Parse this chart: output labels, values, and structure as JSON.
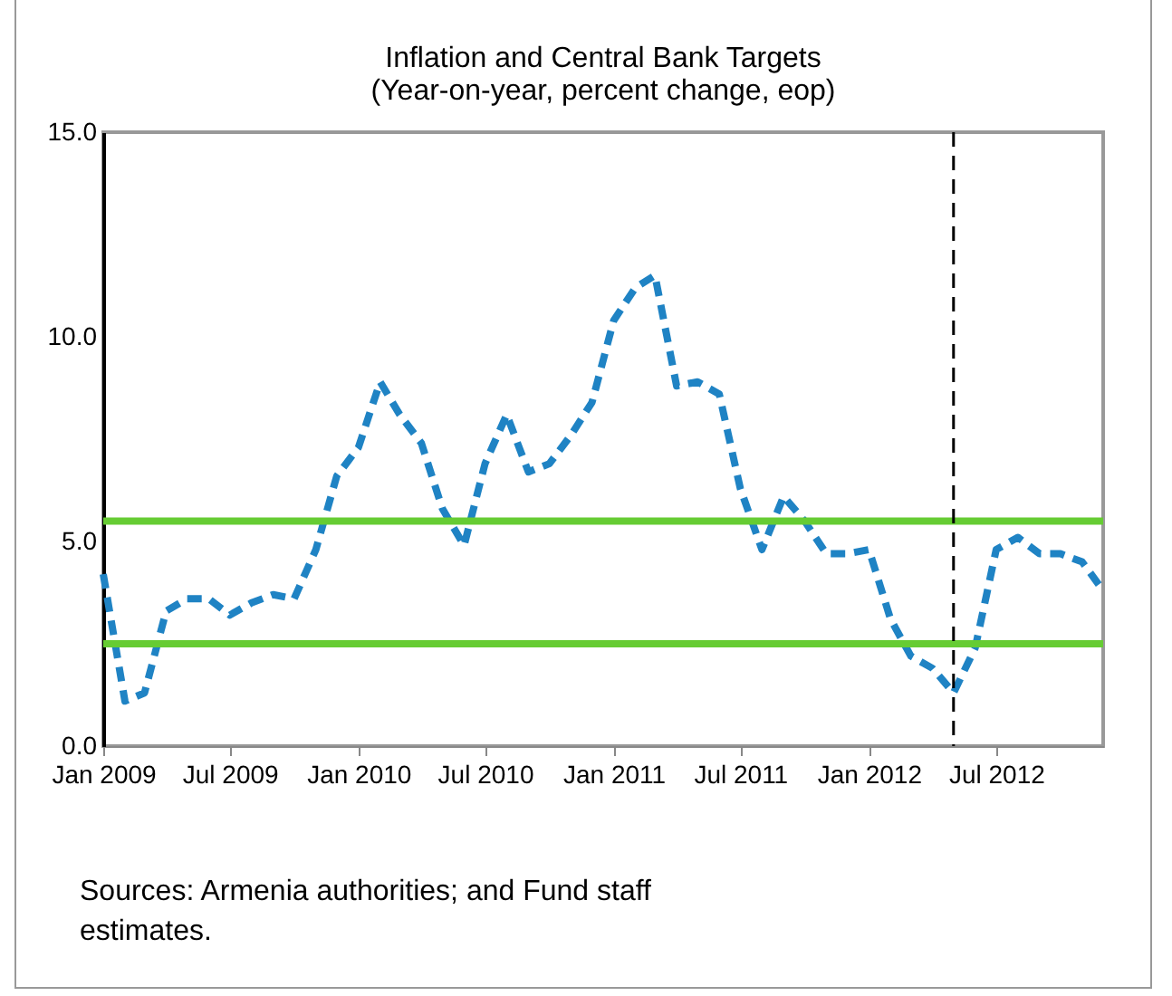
{
  "chart_data": {
    "type": "line",
    "title": "Inflation and Central Bank Targets",
    "subtitle": "(Year-on-year, percent change, eop)",
    "x": [
      "2009-01",
      "2009-02",
      "2009-03",
      "2009-04",
      "2009-05",
      "2009-06",
      "2009-07",
      "2009-08",
      "2009-09",
      "2009-10",
      "2009-11",
      "2009-12",
      "2010-01",
      "2010-02",
      "2010-03",
      "2010-04",
      "2010-05",
      "2010-06",
      "2010-07",
      "2010-08",
      "2010-09",
      "2010-10",
      "2010-11",
      "2010-12",
      "2011-01",
      "2011-02",
      "2011-03",
      "2011-04",
      "2011-05",
      "2011-06",
      "2011-07",
      "2011-08",
      "2011-09",
      "2011-10",
      "2011-11",
      "2011-12",
      "2012-01",
      "2012-02",
      "2012-03",
      "2012-04",
      "2012-05",
      "2012-06",
      "2012-07",
      "2012-08",
      "2012-09",
      "2012-10",
      "2012-11",
      "2012-12"
    ],
    "series": [
      {
        "color": "#1f83c4",
        "line_style": "dashed",
        "values": [
          4.2,
          1.1,
          1.3,
          3.3,
          3.6,
          3.6,
          3.2,
          3.5,
          3.7,
          3.6,
          4.8,
          6.6,
          7.3,
          8.9,
          8.1,
          7.4,
          5.8,
          4.9,
          6.9,
          8.1,
          6.7,
          6.9,
          7.6,
          8.4,
          10.4,
          11.2,
          11.5,
          8.8,
          8.9,
          8.6,
          6.3,
          4.8,
          6.1,
          5.5,
          4.7,
          4.7,
          4.8,
          3.1,
          2.2,
          1.9,
          1.3,
          2.4,
          4.8,
          5.1,
          4.7,
          4.7,
          4.5,
          3.8
        ]
      }
    ],
    "xlim": [
      "2009-01",
      "2012-12"
    ],
    "xticks": [
      {
        "value": "2009-01",
        "label": "Jan 2009"
      },
      {
        "value": "2009-07",
        "label": "Jul 2009"
      },
      {
        "value": "2010-01",
        "label": "Jan 2010"
      },
      {
        "value": "2010-07",
        "label": "Jul 2010"
      },
      {
        "value": "2011-01",
        "label": "Jan 2011"
      },
      {
        "value": "2011-07",
        "label": "Jul 2011"
      },
      {
        "value": "2012-01",
        "label": "Jan 2012"
      },
      {
        "value": "2012-07",
        "label": "Jul 2012"
      }
    ],
    "ylim": [
      0,
      15
    ],
    "yticks": [
      {
        "value": 0,
        "label": "0.0"
      },
      {
        "value": 5,
        "label": "5.0"
      },
      {
        "value": 10,
        "label": "10.0"
      },
      {
        "value": 15,
        "label": "15.0"
      }
    ],
    "grid": false,
    "ref_lines": [
      {
        "axis": "y",
        "value": 5.5,
        "color": "#66cc33",
        "line_style": "solid"
      },
      {
        "axis": "y",
        "value": 2.5,
        "color": "#66cc33",
        "line_style": "solid"
      },
      {
        "axis": "x",
        "value": "2012-05",
        "color": "#000000",
        "line_style": "dashed"
      }
    ],
    "annotations": [
      "Sources: Armenia authorities; and Fund staff estimates."
    ]
  }
}
